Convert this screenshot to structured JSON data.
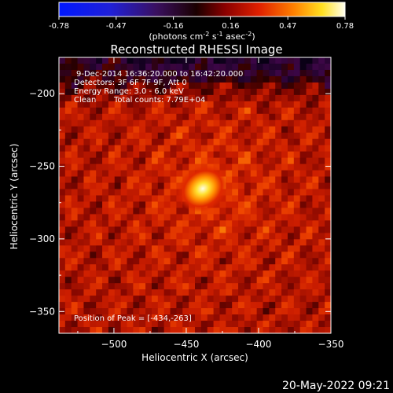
{
  "colorbar": {
    "ticks": [
      "-0.78",
      "-0.47",
      "-0.16",
      "0.16",
      "0.47",
      "0.78"
    ],
    "unit_label_parts": [
      "(photons cm",
      "-2",
      " s",
      "-1",
      " asec",
      "-2",
      ")"
    ]
  },
  "title": "Reconstructed RHESSI Image",
  "info": {
    "line1": "9-Dec-2014 16:36:20.000 to 16:42:20.000",
    "line2": "Detectors: 3F 6F 7F 9F, Att 0",
    "line3": "Energy Range: 3.0 - 6.0 keV",
    "line4_left": "Clean",
    "line4_right": "Total counts: 7.79E+04"
  },
  "peak_label": "Position of Peak = [-434,-263]",
  "footer_date": "20-May-2022 09:21",
  "chart_data": {
    "type": "heatmap",
    "title": "Reconstructed RHESSI Image",
    "xlabel": "Heliocentric X (arcsec)",
    "ylabel": "Heliocentric Y (arcsec)",
    "xlim": [
      -538,
      -350
    ],
    "ylim": [
      -365,
      -175
    ],
    "xticks": [
      -500,
      -450,
      -400,
      -350
    ],
    "yticks": [
      -200,
      -250,
      -300,
      -350
    ],
    "colorbar_range": [
      -0.78,
      0.78
    ],
    "colormap": "RHESSI red-temperature",
    "peak": {
      "x": -434,
      "y": -263
    }
  }
}
